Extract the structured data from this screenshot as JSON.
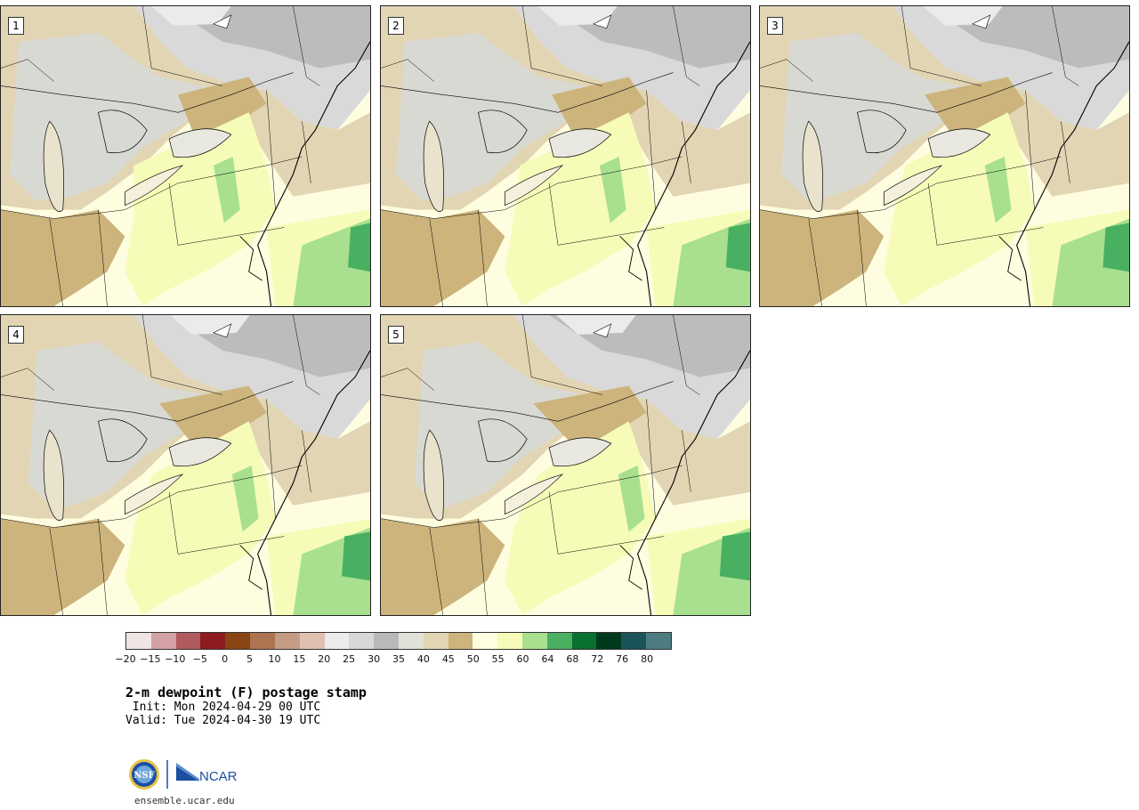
{
  "panels": [
    {
      "label": "1"
    },
    {
      "label": "2"
    },
    {
      "label": "3"
    },
    {
      "label": "4"
    },
    {
      "label": "5"
    }
  ],
  "colorbar": {
    "colors": [
      "#f0e4e4",
      "#d4a2a4",
      "#b05a5e",
      "#8e1a22",
      "#8a4414",
      "#ac7450",
      "#c49c84",
      "#e0c0b0",
      "#ececec",
      "#d8d8d8",
      "#b9b9b9",
      "#e1e1d7",
      "#e2d5b3",
      "#ccb47c",
      "#fefee0",
      "#f6fcb8",
      "#a8e090",
      "#48b060",
      "#087030",
      "#003a1c",
      "#1a5458",
      "#4d7c80"
    ],
    "tick_labels": [
      "−20",
      "−15",
      "−10",
      "−5",
      "0",
      "5",
      "10",
      "15",
      "20",
      "25",
      "30",
      "35",
      "40",
      "45",
      "50",
      "55",
      "60",
      "64",
      "68",
      "72",
      "76",
      "80"
    ]
  },
  "title": "2-m dewpoint (F) postage stamp",
  "init": " Init: Mon 2024-04-29 00 UTC",
  "valid": "Valid: Tue 2024-04-30 19 UTC",
  "logos": {
    "nsf": "NSF",
    "ncar": "NCAR"
  },
  "site": "ensemble.ucar.edu"
}
